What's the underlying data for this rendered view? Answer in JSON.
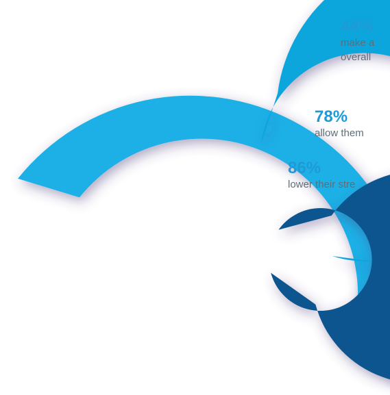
{
  "chart_data": {
    "type": "radial_bar",
    "series": [
      {
        "value": 44,
        "label": "44%",
        "lines": [
          "make a",
          "overall"
        ],
        "color": "#1fb0e6"
      },
      {
        "value": 78,
        "label": "78%",
        "lines": [
          "allow them"
        ],
        "color": "#08a6dc"
      },
      {
        "value": 86,
        "label": "86%",
        "lines": [
          "lower their stre"
        ],
        "color": "#08548e"
      }
    ]
  }
}
